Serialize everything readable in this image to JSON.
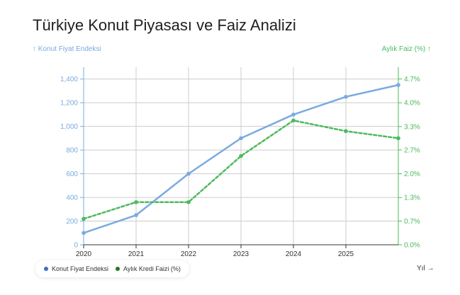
{
  "chart_data": {
    "type": "line",
    "title": "Türkiye Konut Piyasası ve Faiz Analizi",
    "xlabel": "Yıl →",
    "ylabel_left": "↑ Konut Fiyat Endeksi",
    "ylabel_right": "Aylık Faiz (%) ↑",
    "x": [
      2020,
      2021,
      2022,
      2023,
      2024,
      2025,
      2026
    ],
    "x_ticks": [
      "2020",
      "2021",
      "2022",
      "2023",
      "2024",
      "2025"
    ],
    "xlim": [
      2020,
      2026
    ],
    "left_axis": {
      "ylim": [
        0,
        1500
      ],
      "ticks": [
        0,
        200,
        400,
        600,
        800,
        1000,
        1200,
        1400
      ],
      "tick_labels": [
        "0",
        "200",
        "400",
        "600",
        "800",
        "1,000",
        "1,200",
        "1,400"
      ]
    },
    "right_axis": {
      "ylim": [
        0,
        5.0
      ],
      "ticks": [
        0,
        0.67,
        1.33,
        2.0,
        2.67,
        3.33,
        4.0,
        4.67
      ],
      "tick_labels": [
        "0.0%",
        "0.7%",
        "1.3%",
        "2.0%",
        "2.7%",
        "3.3%",
        "4.0%",
        "4.7%"
      ]
    },
    "series": [
      {
        "name": "Konut Fiyat Endeksi",
        "axis": "left",
        "style": "solid",
        "color": "#7aaae0",
        "values": [
          100,
          250,
          600,
          900,
          1100,
          1250,
          1350
        ]
      },
      {
        "name": "Aylık Kredi Faizi (%)",
        "axis": "right",
        "style": "dashed",
        "color": "#4cba5c",
        "values": [
          0.73,
          1.2,
          1.2,
          2.5,
          3.5,
          3.2,
          3.0
        ]
      }
    ],
    "grid": true,
    "legend_position": "bottom-left",
    "legend_colors": [
      "#3d6cc9",
      "#1e7a2b"
    ]
  }
}
